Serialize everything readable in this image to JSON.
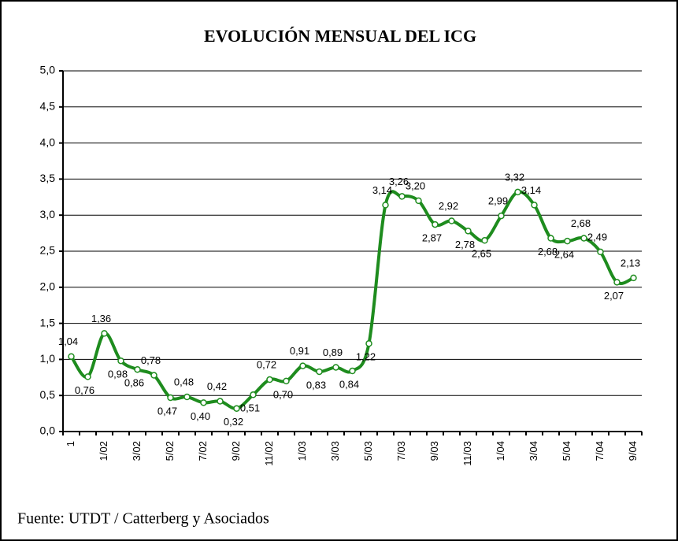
{
  "chart_data": {
    "type": "line",
    "title": "EVOLUCIÓN MENSUAL DEL ICG",
    "source": "Fuente: UTDT / Catterberg y Asociados",
    "categories": [
      "1",
      null,
      "1/02",
      null,
      "3/02",
      null,
      "5/02",
      null,
      "7/02",
      null,
      "9/02",
      null,
      "11/02",
      null,
      "1/03",
      null,
      "3/03",
      null,
      "5/03",
      null,
      "7/03",
      null,
      "9/03",
      null,
      "11/03",
      null,
      "1/04",
      null,
      "3/04",
      null,
      "5/04",
      null,
      "7/04",
      null,
      "9/04"
    ],
    "series": [
      {
        "color": "#1e8c1e",
        "values": [
          1.04,
          0.76,
          1.36,
          0.98,
          0.86,
          0.78,
          0.47,
          0.48,
          0.4,
          0.42,
          0.32,
          0.51,
          0.72,
          0.7,
          0.91,
          0.83,
          0.89,
          0.84,
          1.22,
          3.14,
          3.26,
          3.2,
          2.87,
          2.92,
          2.78,
          2.65,
          2.99,
          3.32,
          3.14,
          2.68,
          2.64,
          2.68,
          2.49,
          2.07,
          2.13
        ],
        "value_labels": [
          "1,04",
          "0,76",
          "1,36",
          "0,98",
          "0,86",
          "0,78",
          "0,47",
          "0,48",
          "0,40",
          "0,42",
          "0,32",
          "0,51",
          "0,72",
          "0,70",
          "0,91",
          "0,83",
          "0,89",
          "0,84",
          "1,22",
          "3,14",
          "3,26",
          "3,20",
          "2,87",
          "2,92",
          "2,78",
          "2,65",
          "2,99",
          "3,32",
          "3,14",
          "2,68",
          "2,64",
          "2,68",
          "2,49",
          "2,07",
          "2,13"
        ]
      }
    ],
    "ylim": [
      0,
      5
    ],
    "yticks": [
      {
        "value": 0,
        "label": "0,0"
      },
      {
        "value": 0.5,
        "label": "0,5"
      },
      {
        "value": 1,
        "label": "1,0"
      },
      {
        "value": 1.5,
        "label": "1,5"
      },
      {
        "value": 2,
        "label": "2,0"
      },
      {
        "value": 2.5,
        "label": "2,5"
      },
      {
        "value": 3,
        "label": "3,0"
      },
      {
        "value": 3.5,
        "label": "3,5"
      },
      {
        "value": 4,
        "label": "4,0"
      },
      {
        "value": 4.5,
        "label": "4,5"
      },
      {
        "value": 5,
        "label": "5,0"
      }
    ],
    "grid": true
  }
}
